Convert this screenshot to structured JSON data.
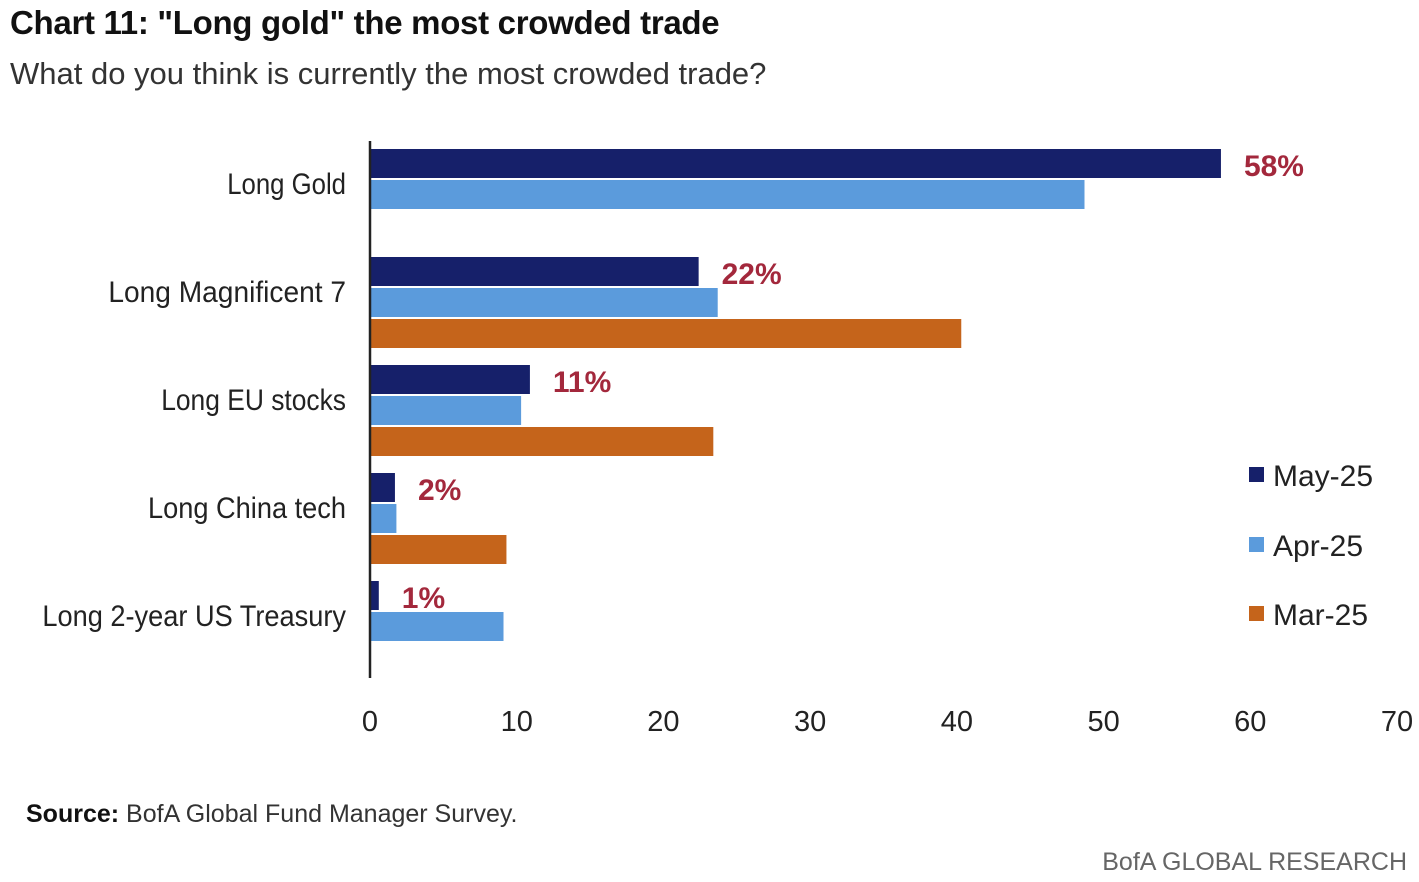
{
  "header": {
    "title": "Chart 11: \"Long gold\" the most crowded trade",
    "subtitle": "What do you think is currently the most crowded trade?"
  },
  "footer": {
    "source_label": "Source:",
    "source_text": " BofA Global Fund Manager Survey.",
    "brand": "BofA GLOBAL RESEARCH"
  },
  "chart_data": {
    "type": "bar",
    "orientation": "horizontal",
    "title": "",
    "xlabel": "",
    "ylabel": "",
    "xlim": [
      0,
      70
    ],
    "xticks": [
      0,
      10,
      20,
      30,
      40,
      50,
      60,
      70
    ],
    "grid": false,
    "legend_position": "right",
    "categories": [
      "Long Gold",
      "Long Magnificent 7",
      "Long EU stocks",
      "Long China tech",
      "Long 2-year US Treasury"
    ],
    "series": [
      {
        "name": "May-25",
        "color": "#16206a",
        "values": [
          58,
          22.4,
          10.9,
          1.7,
          0.6
        ]
      },
      {
        "name": "Apr-25",
        "color": "#5b9bdc",
        "values": [
          48.7,
          23.7,
          10.3,
          1.8,
          9.1
        ]
      },
      {
        "name": "Mar-25",
        "color": "#c5641b",
        "values": [
          null,
          40.3,
          23.4,
          9.3,
          null
        ]
      }
    ],
    "data_labels": [
      "58%",
      "22%",
      "11%",
      "2%",
      "1%"
    ],
    "data_label_color": "#a3283c"
  }
}
